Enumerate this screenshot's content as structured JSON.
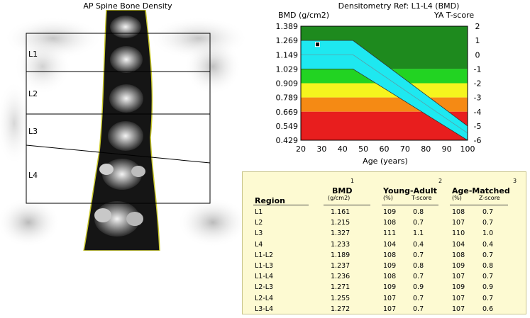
{
  "scan": {
    "title": "AP Spine Bone Density",
    "regions": [
      "L1",
      "L2",
      "L3",
      "L4"
    ]
  },
  "chart": {
    "title": "Densitometry Ref: L1-L4 (BMD)",
    "ylabel_left": "BMD (g/cm2)",
    "ylabel_right": "YA T-score",
    "xlabel": "Age (years)"
  },
  "chart_data": {
    "type": "area",
    "x_ticks": [
      20,
      30,
      40,
      50,
      60,
      70,
      80,
      90,
      100
    ],
    "y_ticks_left": [
      "1.389",
      "1.269",
      "1.149",
      "1.029",
      "0.909",
      "0.789",
      "0.669",
      "0.549",
      "0.429"
    ],
    "y_ticks_right": [
      "2",
      "1",
      "0",
      "-1",
      "-2",
      "-3",
      "-4",
      "-5",
      "-6"
    ],
    "xlim": [
      20,
      100
    ],
    "ylim": [
      0.429,
      1.389
    ],
    "bands": [
      {
        "from": 1.029,
        "to": 1.389,
        "color": "#1e8a1e"
      },
      {
        "from": 0.909,
        "to": 1.029,
        "color": "#22d322"
      },
      {
        "from": 0.789,
        "to": 0.909,
        "color": "#f5f51e"
      },
      {
        "from": 0.669,
        "to": 0.789,
        "color": "#f58a14"
      },
      {
        "from": 0.429,
        "to": 0.669,
        "color": "#e81e1e"
      }
    ],
    "reference_curve": {
      "color": "#1ee8f0",
      "upper": [
        [
          20,
          1.269
        ],
        [
          45,
          1.269
        ],
        [
          100,
          0.549
        ]
      ],
      "lower": [
        [
          20,
          1.029
        ],
        [
          45,
          1.029
        ],
        [
          100,
          0.429
        ]
      ],
      "mean": [
        [
          20,
          1.149
        ],
        [
          45,
          1.149
        ],
        [
          100,
          0.489
        ]
      ]
    },
    "patient_point": {
      "x": 28,
      "y": 1.236
    }
  },
  "results": {
    "col_numbers": [
      "1",
      "2",
      "3"
    ],
    "headers": {
      "region": "Region",
      "bmd": "BMD",
      "bmd_unit": "(g/cm2)",
      "young_adult": "Young-Adult",
      "age_matched": "Age-Matched",
      "pct": "(%)",
      "tscore": "T-score",
      "zscore": "Z-score"
    },
    "rows": [
      {
        "region": "L1",
        "bmd": "1.161",
        "ya_pct": "109",
        "t": "0.8",
        "am_pct": "108",
        "z": "0.7"
      },
      {
        "region": "L2",
        "bmd": "1.215",
        "ya_pct": "108",
        "t": "0.7",
        "am_pct": "107",
        "z": "0.7"
      },
      {
        "region": "L3",
        "bmd": "1.327",
        "ya_pct": "111",
        "t": "1.1",
        "am_pct": "110",
        "z": "1.0"
      },
      {
        "region": "L4",
        "bmd": "1.233",
        "ya_pct": "104",
        "t": "0.4",
        "am_pct": "104",
        "z": "0.4"
      },
      {
        "region": "L1-L2",
        "bmd": "1.189",
        "ya_pct": "108",
        "t": "0.7",
        "am_pct": "108",
        "z": "0.7"
      },
      {
        "region": "L1-L3",
        "bmd": "1.237",
        "ya_pct": "109",
        "t": "0.8",
        "am_pct": "109",
        "z": "0.8"
      },
      {
        "region": "L1-L4",
        "bmd": "1.236",
        "ya_pct": "108",
        "t": "0.7",
        "am_pct": "107",
        "z": "0.7"
      },
      {
        "region": "L2-L3",
        "bmd": "1.271",
        "ya_pct": "109",
        "t": "0.9",
        "am_pct": "109",
        "z": "0.9"
      },
      {
        "region": "L2-L4",
        "bmd": "1.255",
        "ya_pct": "107",
        "t": "0.7",
        "am_pct": "107",
        "z": "0.7"
      },
      {
        "region": "L3-L4",
        "bmd": "1.272",
        "ya_pct": "107",
        "t": "0.7",
        "am_pct": "107",
        "z": "0.6"
      }
    ]
  }
}
